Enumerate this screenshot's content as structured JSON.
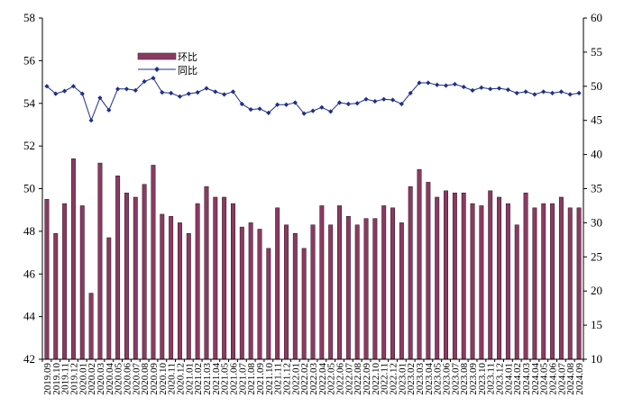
{
  "chart_data": {
    "type": "bar+line",
    "dual_axis": true,
    "categories": [
      "2019.09",
      "2019.10",
      "2019.11",
      "2019.12",
      "2020.01",
      "2020.02",
      "2020.03",
      "2020.04",
      "2020.05",
      "2020.06",
      "2020.07",
      "2020.08",
      "2020.09",
      "2020.10",
      "2020.11",
      "2020.12",
      "2021.01",
      "2021.02",
      "2021.03",
      "2021.04",
      "2021.05",
      "2021.06",
      "2021.07",
      "2021.08",
      "2021.09",
      "2021.10",
      "2021.11",
      "2021.12",
      "2022.01",
      "2022.02",
      "2022.03",
      "2022.04",
      "2022.05",
      "2022.06",
      "2022.07",
      "2022.08",
      "2022.09",
      "2022.10",
      "2022.11",
      "2022.12",
      "2023.01",
      "2023.02",
      "2023.03",
      "2023.04",
      "2023.05",
      "2023.06",
      "2023.07",
      "2023.08",
      "2023.09",
      "2023.10",
      "2023.11",
      "2023.12",
      "2024.01",
      "2024.02",
      "2024.03",
      "2024.04",
      "2024.05",
      "2024.06",
      "2024.07",
      "2024.08",
      "2024.09"
    ],
    "series": [
      {
        "name": "环比",
        "kind": "bar",
        "axis": "left",
        "color": "#8b3a62",
        "values": [
          49.5,
          47.9,
          49.3,
          51.4,
          49.2,
          45.1,
          51.2,
          47.7,
          50.6,
          49.8,
          49.6,
          50.2,
          51.1,
          48.8,
          48.7,
          48.4,
          47.9,
          49.3,
          50.1,
          49.6,
          49.6,
          49.3,
          48.2,
          48.4,
          48.1,
          47.2,
          49.1,
          48.3,
          47.9,
          47.2,
          48.3,
          49.2,
          48.3,
          49.2,
          48.7,
          48.3,
          48.6,
          48.6,
          49.2,
          49.1,
          48.4,
          50.1,
          50.9,
          50.3,
          49.6,
          49.9,
          49.8,
          49.8,
          49.3,
          49.2,
          49.9,
          49.6,
          49.3,
          48.3,
          49.8,
          49.1,
          49.3,
          49.3,
          49.6,
          49.1,
          49.1
        ]
      },
      {
        "name": "同比",
        "kind": "line",
        "axis": "right",
        "color": "#1f2e8c",
        "values": [
          50.0,
          48.9,
          49.3,
          50.0,
          48.9,
          45.0,
          48.3,
          46.5,
          49.6,
          49.6,
          49.4,
          50.7,
          51.2,
          49.1,
          49.0,
          48.5,
          48.9,
          49.1,
          49.7,
          49.2,
          48.8,
          49.2,
          47.4,
          46.6,
          46.7,
          46.1,
          47.3,
          47.3,
          47.6,
          46.0,
          46.4,
          46.9,
          46.3,
          47.6,
          47.4,
          47.5,
          48.1,
          47.8,
          48.1,
          48.0,
          47.4,
          49.0,
          50.5,
          50.5,
          50.2,
          50.1,
          50.3,
          49.9,
          49.4,
          49.8,
          49.6,
          49.7,
          49.5,
          49.0,
          49.2,
          48.8,
          49.2,
          49.0,
          49.2,
          48.8,
          49.0
        ]
      }
    ],
    "y_left": {
      "min": 42,
      "max": 58,
      "ticks": [
        42,
        44,
        46,
        48,
        50,
        52,
        54,
        56,
        58
      ]
    },
    "y_right": {
      "min": 10,
      "max": 60,
      "ticks": [
        10,
        15,
        20,
        25,
        30,
        35,
        40,
        45,
        50,
        55,
        60
      ]
    },
    "legend": {
      "position": "top-left",
      "entries": [
        "环比",
        "同比"
      ]
    },
    "grid": false
  }
}
